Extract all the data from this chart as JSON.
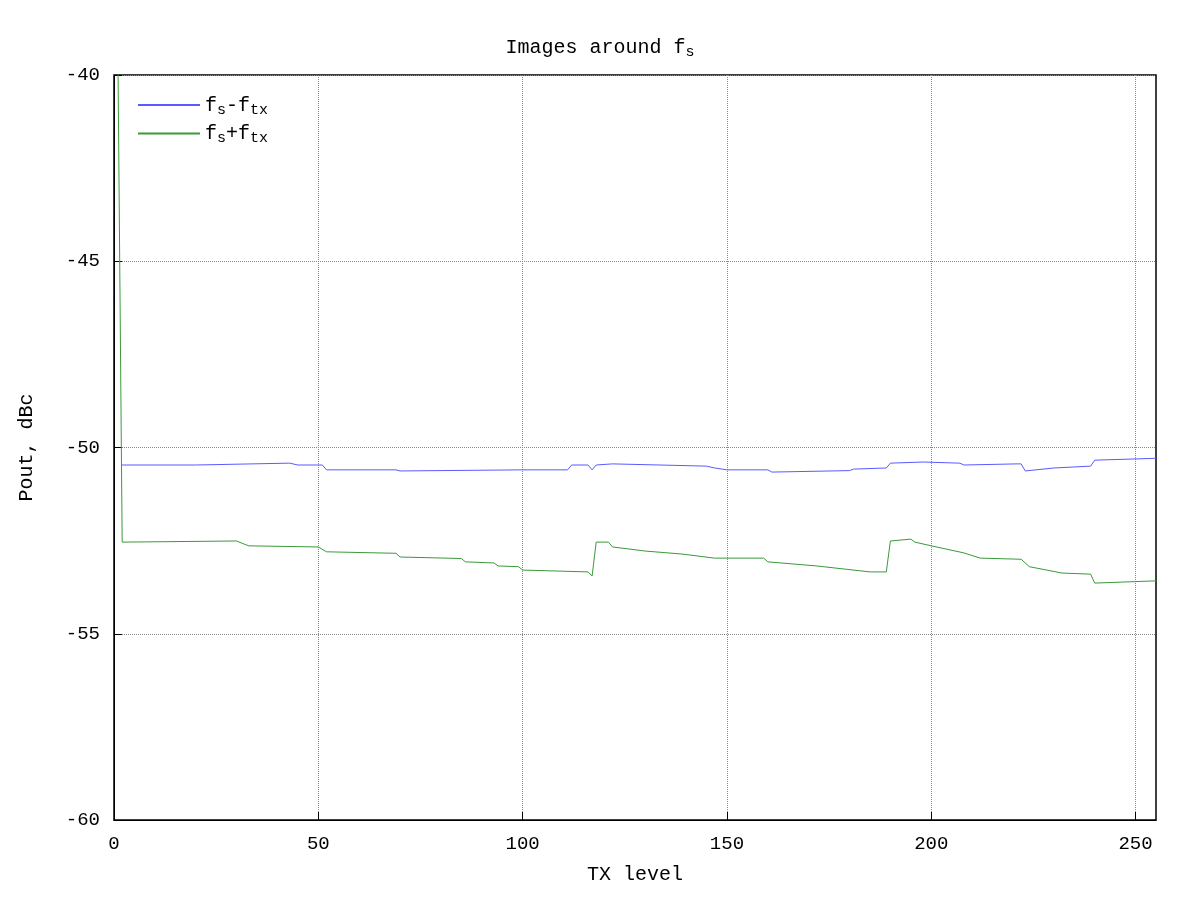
{
  "chart_data": {
    "type": "line",
    "title": "Images around f$_{s}$",
    "xlabel": "TX level",
    "ylabel": "Pout, dBc",
    "xlim": [
      0,
      255
    ],
    "xticks": [
      0,
      50,
      100,
      150,
      200,
      250
    ],
    "ylim": [
      -60,
      -40
    ],
    "yticks": [
      -60,
      -55,
      -50,
      -45,
      -40
    ],
    "grid": true,
    "legend": "top left",
    "marker": "none",
    "line_style": "solid",
    "series": [
      {
        "name": "f$_{s}$-f$_{tx}$",
        "color": "#5a5aff",
        "x": [
          2,
          20,
          43,
          45,
          51,
          52,
          69,
          70,
          100,
          111,
          112,
          116,
          117,
          118,
          122,
          145,
          147,
          150,
          160,
          161,
          180,
          181,
          189,
          190,
          198,
          207,
          208,
          221,
          222,
          223,
          230,
          239,
          240,
          255
        ],
        "values": [
          -50.47,
          -50.47,
          -50.42,
          -50.47,
          -50.47,
          -50.6,
          -50.6,
          -50.63,
          -50.6,
          -50.6,
          -50.47,
          -50.47,
          -50.6,
          -50.47,
          -50.44,
          -50.5,
          -50.55,
          -50.6,
          -50.6,
          -50.66,
          -50.62,
          -50.58,
          -50.55,
          -50.42,
          -50.39,
          -50.42,
          -50.47,
          -50.44,
          -50.44,
          -50.63,
          -50.55,
          -50.5,
          -50.34,
          -50.29
        ]
      },
      {
        "name": "f$_{s}$+f$_{tx}$",
        "color": "#3a9a3a",
        "x": [
          1,
          2,
          30,
          32,
          33,
          50,
          52,
          69,
          70,
          85,
          86,
          93,
          94,
          99,
          100,
          116,
          117,
          118,
          121,
          122,
          130,
          139,
          147,
          159,
          160,
          172,
          185,
          189,
          190,
          195,
          196,
          200,
          208,
          212,
          222,
          224,
          232,
          239,
          240,
          255
        ],
        "values": [
          -40,
          -52.54,
          -52.51,
          -52.6,
          -52.64,
          -52.67,
          -52.8,
          -52.84,
          -52.94,
          -52.98,
          -53.07,
          -53.1,
          -53.18,
          -53.2,
          -53.29,
          -53.34,
          -53.45,
          -52.54,
          -52.54,
          -52.67,
          -52.78,
          -52.86,
          -52.97,
          -52.97,
          -53.07,
          -53.18,
          -53.34,
          -53.34,
          -52.51,
          -52.46,
          -52.54,
          -52.64,
          -52.83,
          -52.97,
          -53.0,
          -53.2,
          -53.37,
          -53.4,
          -53.64,
          -53.58
        ]
      }
    ]
  }
}
